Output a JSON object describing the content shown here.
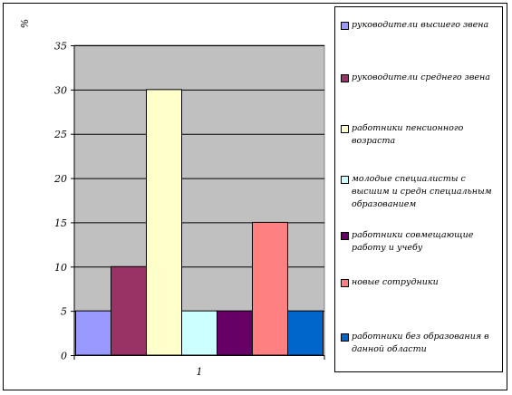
{
  "chart_data": {
    "type": "bar",
    "ylabel": "%",
    "categories": [
      "1"
    ],
    "ylim": [
      0,
      35
    ],
    "yticks": [
      0,
      5,
      10,
      15,
      20,
      25,
      30,
      35
    ],
    "grid": true,
    "legend_position": "right",
    "series": [
      {
        "name": "руководители высшего звена",
        "values": [
          5
        ],
        "color": "#9999ff"
      },
      {
        "name": "руководители среднего звена",
        "values": [
          10
        ],
        "color": "#993366"
      },
      {
        "name": "работники пенсионного возраста",
        "values": [
          30
        ],
        "color": "#ffffcc"
      },
      {
        "name": "молодые специалисты с высшим и средн специальным образованием",
        "values": [
          5
        ],
        "color": "#ccffff"
      },
      {
        "name": "работники совмещающие работу и учебу",
        "values": [
          5
        ],
        "color": "#660066"
      },
      {
        "name": "новые сотрудники",
        "values": [
          15
        ],
        "color": "#ff8080"
      },
      {
        "name": "работники без образования в данной области",
        "values": [
          5
        ],
        "color": "#0066cc"
      }
    ]
  }
}
